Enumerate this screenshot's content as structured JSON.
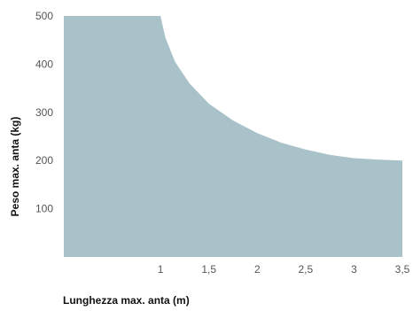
{
  "chart_data": {
    "type": "area",
    "title": "",
    "xlabel": "Lunghezza max. anta (m)",
    "ylabel": "Peso max. anta (kg)",
    "xlim": [
      0,
      3.5
    ],
    "ylim": [
      0,
      500
    ],
    "x_ticks": [
      {
        "value": 1,
        "label": "1"
      },
      {
        "value": 1.5,
        "label": "1,5"
      },
      {
        "value": 2,
        "label": "2"
      },
      {
        "value": 2.5,
        "label": "2,5"
      },
      {
        "value": 3,
        "label": "3"
      },
      {
        "value": 3.5,
        "label": "3,5"
      }
    ],
    "y_ticks": [
      {
        "value": 100,
        "label": "100"
      },
      {
        "value": 200,
        "label": "200"
      },
      {
        "value": 300,
        "label": "300"
      },
      {
        "value": 400,
        "label": "400"
      },
      {
        "value": 500,
        "label": "500"
      }
    ],
    "grid": false,
    "legend": "none",
    "fill_color": "#a9c2ca",
    "series": [
      {
        "x": [
          0,
          1,
          1.05,
          1.15,
          1.3,
          1.5,
          1.75,
          2,
          2.25,
          2.5,
          2.75,
          3,
          3.25,
          3.5
        ],
        "values": [
          500,
          500,
          455,
          405,
          360,
          318,
          283,
          257,
          237,
          223,
          212,
          205,
          202,
          200
        ]
      }
    ]
  }
}
